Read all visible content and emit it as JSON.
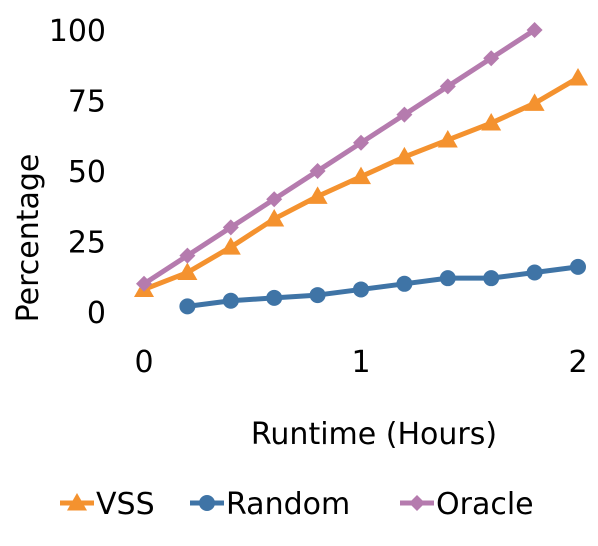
{
  "chart_data": {
    "type": "line",
    "xlabel": "Runtime (Hours)",
    "ylabel": "Percentage",
    "xlim": [
      0,
      2
    ],
    "ylim": [
      0,
      100
    ],
    "x_ticks": [
      "0",
      "1",
      "2"
    ],
    "y_ticks": [
      "0",
      "25",
      "50",
      "75",
      "100"
    ],
    "grid": false,
    "legend_position": "bottom",
    "series": [
      {
        "name": "VSS",
        "color": "#F4922F",
        "marker": "triangle",
        "points": [
          [
            0,
            8
          ],
          [
            0.2,
            14
          ],
          [
            0.4,
            23
          ],
          [
            0.6,
            33
          ],
          [
            0.8,
            41
          ],
          [
            1.0,
            48
          ],
          [
            1.2,
            55
          ],
          [
            1.4,
            61
          ],
          [
            1.6,
            67
          ],
          [
            1.8,
            74
          ],
          [
            2.0,
            83
          ]
        ]
      },
      {
        "name": "Random",
        "color": "#3F74A6",
        "marker": "circle",
        "points": [
          [
            0.2,
            2
          ],
          [
            0.4,
            4
          ],
          [
            0.6,
            5
          ],
          [
            0.8,
            6
          ],
          [
            1.0,
            8
          ],
          [
            1.2,
            10
          ],
          [
            1.4,
            12
          ],
          [
            1.6,
            12
          ],
          [
            1.8,
            14
          ],
          [
            2.0,
            16
          ]
        ]
      },
      {
        "name": "Oracle",
        "color": "#B57BAE",
        "marker": "diamond",
        "points": [
          [
            0,
            10
          ],
          [
            0.2,
            20
          ],
          [
            0.4,
            30
          ],
          [
            0.6,
            40
          ],
          [
            0.8,
            50
          ],
          [
            1.0,
            60
          ],
          [
            1.2,
            70
          ],
          [
            1.4,
            80
          ],
          [
            1.6,
            90
          ],
          [
            1.8,
            100
          ]
        ]
      }
    ]
  }
}
